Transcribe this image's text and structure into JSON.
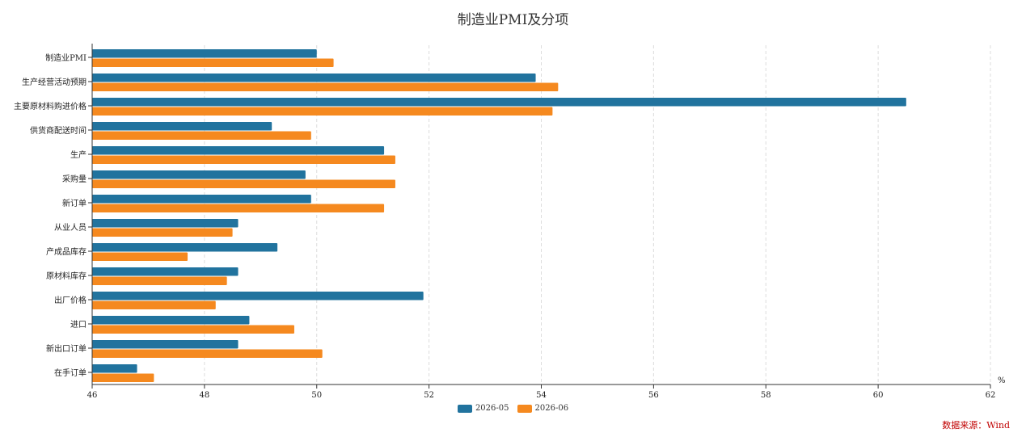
{
  "chart_data": {
    "type": "bar",
    "orientation": "horizontal",
    "title": "制造业PMI及分项",
    "unit_label": "%",
    "categories": [
      "制造业PMI",
      "生产经营活动预期",
      "主要原材料购进价格",
      "供货商配送时间",
      "生产",
      "采购量",
      "新订单",
      "从业人员",
      "产成品库存",
      "原材料库存",
      "出厂价格",
      "进口",
      "新出口订单",
      "在手订单"
    ],
    "series": [
      {
        "name": "2026-05",
        "color": "#21739e",
        "values": [
          50.0,
          53.9,
          60.5,
          49.2,
          51.2,
          49.8,
          49.9,
          48.6,
          49.3,
          48.6,
          51.9,
          48.8,
          48.6,
          46.8
        ]
      },
      {
        "name": "2026-06",
        "color": "#f5891f",
        "values": [
          50.3,
          54.3,
          54.2,
          49.9,
          51.4,
          51.4,
          51.2,
          48.5,
          47.7,
          48.4,
          48.2,
          49.6,
          50.1,
          47.1
        ]
      }
    ],
    "xlim": [
      46,
      62
    ],
    "xticks": [
      46,
      48,
      50,
      52,
      54,
      56,
      58,
      60,
      62
    ],
    "grid": "vertical dashed",
    "legend_position": "bottom-center"
  },
  "source_note": "数据来源：Wind"
}
